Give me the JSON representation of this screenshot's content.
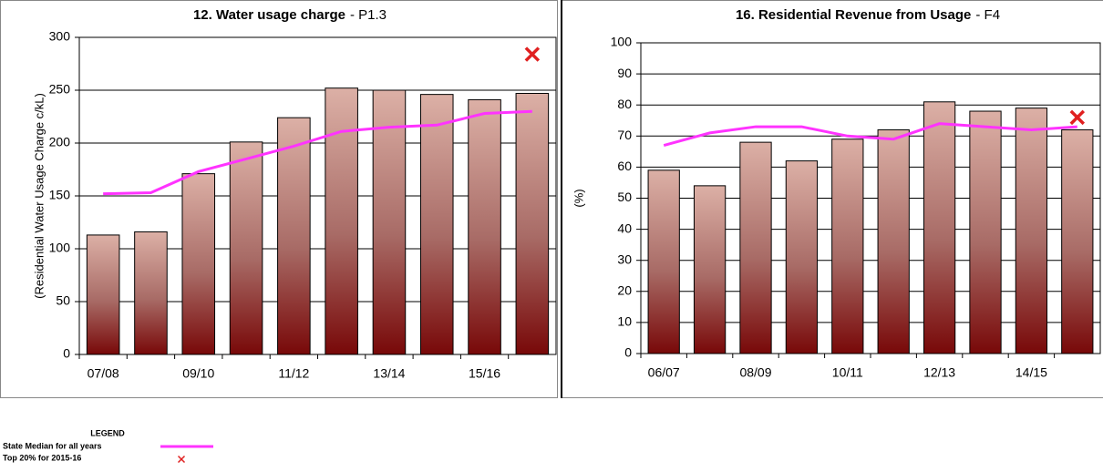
{
  "chart_data": [
    {
      "type": "bar",
      "title": "12. Water usage charge",
      "title_code": "- P1.3",
      "ylabel": "(Residential Water Usage Charge c/kL)",
      "categories": [
        "07/08",
        null,
        "09/10",
        null,
        "11/12",
        null,
        "13/14",
        null,
        "15/16",
        null
      ],
      "values": [
        113,
        116,
        171,
        201,
        224,
        252,
        250,
        246,
        241,
        247
      ],
      "median": [
        152,
        153,
        173,
        185,
        197,
        211,
        215,
        217,
        228,
        230
      ],
      "top20": 284,
      "ylim": [
        0,
        300
      ],
      "yticks": [
        0,
        50,
        100,
        150,
        200,
        250,
        300
      ],
      "grid": true
    },
    {
      "type": "bar",
      "title": "16. Residential Revenue from Usage",
      "title_code": "- F4",
      "ylabel": "(%)",
      "categories": [
        "06/07",
        null,
        "08/09",
        null,
        "10/11",
        null,
        "12/13",
        null,
        "14/15",
        null
      ],
      "values": [
        59,
        54,
        68,
        62,
        69,
        72,
        81,
        78,
        79,
        72
      ],
      "median": [
        67,
        71,
        73,
        73,
        70,
        69,
        74,
        73,
        72,
        73
      ],
      "top20": 76,
      "ylim": [
        0,
        100
      ],
      "yticks": [
        0,
        10,
        20,
        30,
        40,
        50,
        60,
        70,
        80,
        90,
        100
      ],
      "grid": true
    }
  ],
  "legend": {
    "title": "LEGEND",
    "median_label": "State Median for all years",
    "median_color": "#ff33ff",
    "top20_label": "Top 20% for 2015-16",
    "top20_color": "#e02020"
  }
}
